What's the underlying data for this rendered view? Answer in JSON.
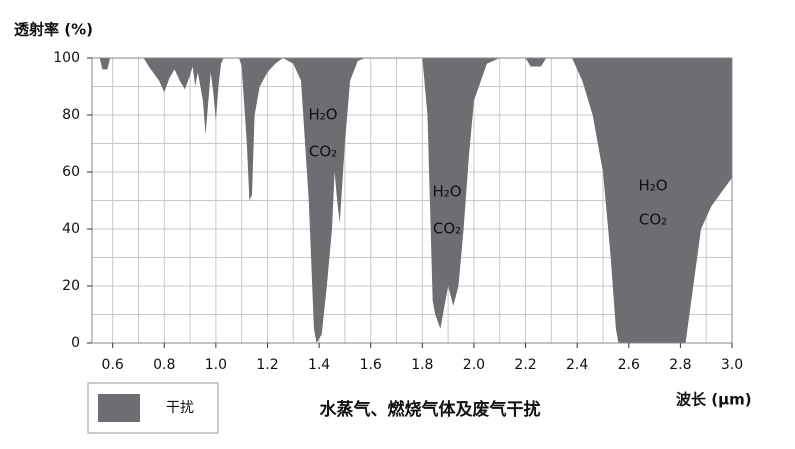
{
  "chart_data": {
    "type": "area",
    "y_label": "透射率 (%)",
    "x_label": "波长 (μm)",
    "caption": "水蒸气、燃烧气体及废气干扰",
    "legend": "干扰",
    "color": "#6d6e71",
    "annotations": [
      "H₂O",
      "CO₂",
      "H₂O",
      "CO₂",
      "H₂O",
      "CO₂"
    ],
    "xlim": [
      0.52,
      3.0
    ],
    "ylim": [
      0,
      100
    ],
    "xticks": [
      0.6,
      0.8,
      {
        "value": 1.0,
        "label": "1.0"
      },
      1.2,
      1.4,
      1.6,
      1.8,
      {
        "value": 2.0,
        "label": "2.0"
      },
      2.2,
      2.4,
      2.6,
      2.8,
      {
        "value": 3.0,
        "label": "3.0"
      }
    ],
    "yticks": [
      0,
      20,
      40,
      60,
      80,
      100
    ],
    "xgrid": [
      0.6,
      0.7,
      0.8,
      0.9,
      1.0,
      1.1,
      1.2,
      1.3,
      1.4,
      1.5,
      1.6,
      1.7,
      1.8,
      1.9,
      2.0,
      2.1,
      2.2,
      2.3,
      2.4,
      2.5,
      2.6,
      2.7,
      2.8,
      2.9
    ],
    "ygrid": [
      10,
      20,
      30,
      40,
      50,
      60,
      70,
      80,
      90
    ],
    "x": [
      0.52,
      0.55,
      0.56,
      0.58,
      0.59,
      0.72,
      0.74,
      0.78,
      0.8,
      0.82,
      0.84,
      0.86,
      0.88,
      0.9,
      0.91,
      0.92,
      0.93,
      0.94,
      0.95,
      0.96,
      0.97,
      0.98,
      0.99,
      1.0,
      1.01,
      1.02,
      1.03,
      1.09,
      1.1,
      1.12,
      1.13,
      1.14,
      1.15,
      1.17,
      1.2,
      1.23,
      1.26,
      1.3,
      1.33,
      1.36,
      1.38,
      1.39,
      1.41,
      1.43,
      1.45,
      1.46,
      1.47,
      1.48,
      1.5,
      1.52,
      1.55,
      1.58,
      1.8,
      1.82,
      1.84,
      1.85,
      1.87,
      1.88,
      1.9,
      1.92,
      1.94,
      1.96,
      1.98,
      2.0,
      2.05,
      2.1,
      2.2,
      2.22,
      2.26,
      2.28,
      2.38,
      2.42,
      2.46,
      2.5,
      2.53,
      2.55,
      2.56,
      2.82,
      2.85,
      2.88,
      2.92,
      2.96,
      3.0
    ],
    "y": [
      100,
      100,
      96,
      96,
      100,
      100,
      97,
      92,
      88,
      93,
      96,
      92,
      89,
      94,
      97,
      90,
      95,
      90,
      85,
      73,
      84,
      95,
      88,
      78,
      90,
      98,
      100,
      100,
      97,
      70,
      50,
      52,
      80,
      90,
      95,
      98,
      100,
      98,
      92,
      50,
      5,
      0,
      3,
      20,
      40,
      60,
      50,
      42,
      70,
      92,
      99,
      100,
      100,
      80,
      15,
      10,
      5,
      10,
      20,
      13,
      20,
      40,
      65,
      85,
      98,
      100,
      100,
      97,
      97,
      100,
      100,
      92,
      80,
      60,
      30,
      5,
      0,
      0,
      20,
      40,
      48,
      53,
      58
    ]
  }
}
